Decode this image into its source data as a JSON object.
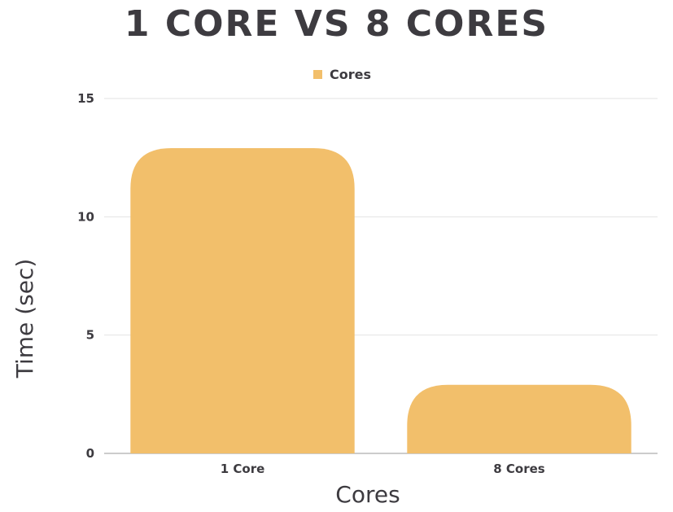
{
  "chart_data": {
    "type": "bar",
    "title": "1 CORE VS 8 CORES",
    "xlabel": "Cores",
    "ylabel": "Time (sec)",
    "categories": [
      "1 Core",
      "8 Cores"
    ],
    "series": [
      {
        "name": "Cores",
        "values": [
          12.9,
          2.9
        ]
      }
    ],
    "ylim": [
      0,
      15
    ],
    "yticks": [
      "0",
      "5",
      "10",
      "15"
    ],
    "grid": true,
    "legend_position": "top-center",
    "bar_color": "#F2BF6B"
  }
}
